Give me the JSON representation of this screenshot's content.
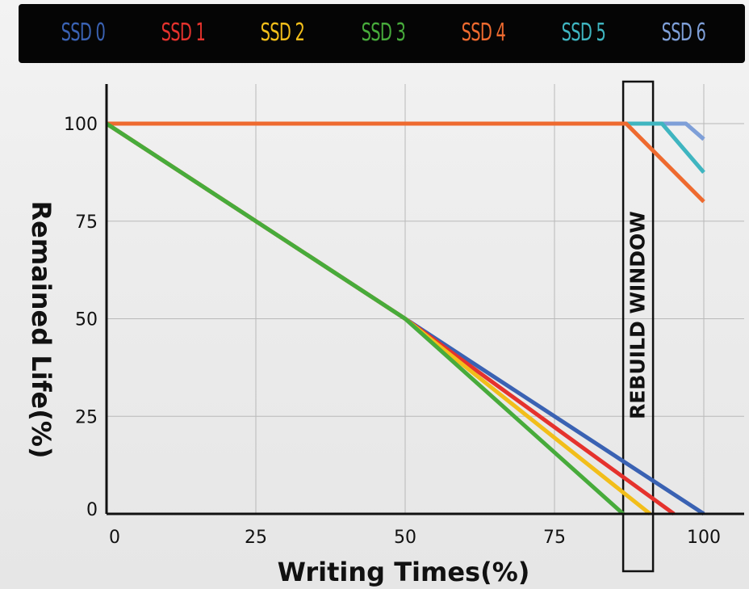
{
  "chart_data": {
    "type": "line",
    "title": "",
    "xlabel": "Writing Times(%)",
    "ylabel": "Remained Life(%)",
    "xlim": [
      0,
      100
    ],
    "ylim": [
      0,
      100
    ],
    "x_ticks": [
      "0",
      "25",
      "50",
      "75",
      "100"
    ],
    "y_ticks": [
      "0",
      "25",
      "50",
      "75",
      "100"
    ],
    "grid": true,
    "legend_position": "top",
    "series": [
      {
        "name": "SSD 0",
        "color": "#3a62b3",
        "points": [
          [
            0,
            100
          ],
          [
            50,
            50
          ],
          [
            100,
            0
          ]
        ]
      },
      {
        "name": "SSD 1",
        "color": "#e5322d",
        "points": [
          [
            0,
            100
          ],
          [
            50,
            50
          ],
          [
            95,
            0
          ]
        ]
      },
      {
        "name": "SSD 2",
        "color": "#f2be1a",
        "points": [
          [
            0,
            100
          ],
          [
            50,
            50
          ],
          [
            91,
            0
          ]
        ]
      },
      {
        "name": "SSD 3",
        "color": "#47ab3b",
        "points": [
          [
            0,
            100
          ],
          [
            50,
            50
          ],
          [
            86.5,
            0
          ]
        ]
      },
      {
        "name": "SSD 4",
        "color": "#ee6a2f",
        "points": [
          [
            0,
            100
          ],
          [
            87,
            100
          ],
          [
            100,
            80
          ]
        ]
      },
      {
        "name": "SSD 5",
        "color": "#3fb5c0",
        "points": [
          [
            0,
            100
          ],
          [
            93,
            100
          ],
          [
            100,
            87.5
          ]
        ]
      },
      {
        "name": "SSD 6",
        "color": "#7e9fd8",
        "points": [
          [
            0,
            100
          ],
          [
            97,
            100
          ],
          [
            100,
            96
          ]
        ]
      }
    ],
    "annotations": [
      {
        "text": "REBUILD WINDOW",
        "x_start": 86.5,
        "x_end": 91.5
      }
    ]
  }
}
